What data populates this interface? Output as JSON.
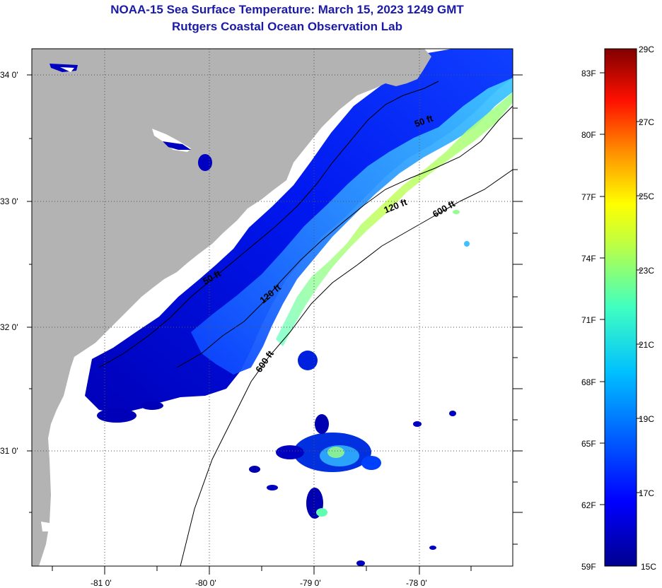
{
  "title": {
    "line1": "NOAA-15 Sea Surface Temperature:  March 15, 2023 1249 GMT",
    "line2": "Rutgers Coastal Ocean Observation Lab"
  },
  "map": {
    "lat_labels": [
      "34 0'",
      "33 0'",
      "32 0'",
      "31 0'"
    ],
    "lon_labels": [
      "-81 0'",
      "-80 0'",
      "-79 0'",
      "-78 0'"
    ],
    "contour_labels": [
      "50 ft",
      "120 ft",
      "600 ft",
      "50 ft",
      "120 ft",
      "600 ft"
    ]
  },
  "colorbar": {
    "fahrenheit": [
      "83F",
      "80F",
      "77F",
      "74F",
      "71F",
      "68F",
      "65F",
      "62F",
      "59F"
    ],
    "celsius": [
      "29C",
      "27C",
      "25C",
      "23C",
      "21C",
      "19C",
      "17C",
      "15C"
    ]
  },
  "colors": {
    "land": "#b3b3b3",
    "no_data": "#ffffff",
    "scale": [
      "#00008f",
      "#0000ff",
      "#0080ff",
      "#00ffff",
      "#80ff80",
      "#ffff00",
      "#ff8000",
      "#ff0000",
      "#800000"
    ]
  }
}
